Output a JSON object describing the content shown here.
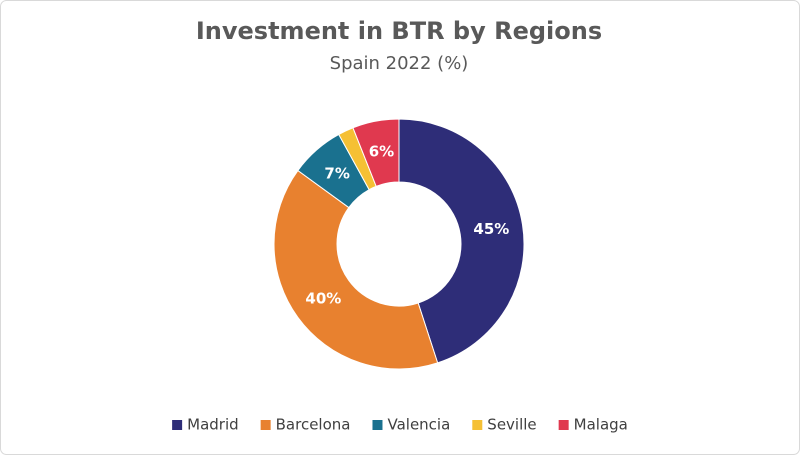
{
  "chart_data": {
    "type": "donut",
    "title": "Investment in BTR by Regions",
    "subtitle": "Spain 2022 (%)",
    "categories": [
      "Madrid",
      "Barcelona",
      "Valencia",
      "Seville",
      "Malaga"
    ],
    "values": [
      45,
      40,
      7,
      2,
      6
    ],
    "value_labels": [
      "45%",
      "40%",
      "7%",
      null,
      "6%"
    ],
    "colors": [
      "#2e2d78",
      "#e8812f",
      "#1a718f",
      "#f5c034",
      "#e0394f"
    ],
    "legend": "bottom"
  }
}
